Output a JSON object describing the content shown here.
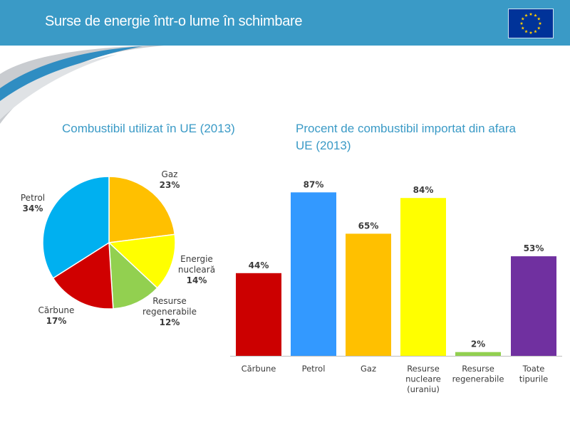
{
  "header": {
    "title": "Surse de energie într-o lume în schimbare",
    "flag_icon": "eu-flag-icon"
  },
  "chart_data": [
    {
      "type": "pie",
      "title": "Combustibil utilizat în UE (2013)",
      "slices": [
        {
          "name": "Gaz",
          "label_lines": [
            "Gaz"
          ],
          "value": 23,
          "display": "23%",
          "color": "#ffc000"
        },
        {
          "name": "Energie nucleară",
          "label_lines": [
            "Energie",
            "nucleară"
          ],
          "value": 14,
          "display": "14%",
          "color": "#ffff00"
        },
        {
          "name": "Resurse regenerabile",
          "label_lines": [
            "Resurse",
            "regenerabile"
          ],
          "value": 12,
          "display": "12%",
          "color": "#92d050"
        },
        {
          "name": "Cărbune",
          "label_lines": [
            "Cărbune"
          ],
          "value": 17,
          "display": "17%",
          "color": "#d00000"
        },
        {
          "name": "Petrol",
          "label_lines": [
            "Petrol"
          ],
          "value": 34,
          "display": "34%",
          "color": "#00b0f0"
        }
      ]
    },
    {
      "type": "bar",
      "title": "Procent de combustibil importat din afara UE (2013)",
      "title_lines": [
        "Procent de combustibil importat din afara",
        "UE (2013)"
      ],
      "categories": [
        "Cărbune",
        "Petrol",
        "Gaz",
        "Resurse nucleare (uraniu)",
        "Resurse regenerabile",
        "Toate tipurile"
      ],
      "category_lines": [
        [
          "Cărbune"
        ],
        [
          "Petrol"
        ],
        [
          "Gaz"
        ],
        [
          "Resurse",
          "nucleare",
          "(uraniu)"
        ],
        [
          "Resurse",
          "regenerabile"
        ],
        [
          "Toate",
          "tipurile"
        ]
      ],
      "values": [
        44,
        87,
        65,
        84,
        2,
        53
      ],
      "value_labels": [
        "44%",
        "87%",
        "65%",
        "84%",
        "2%",
        "53%"
      ],
      "colors": [
        "#cc0000",
        "#3399ff",
        "#ffc000",
        "#ffff00",
        "#92d050",
        "#7030a0"
      ],
      "xlabel": "",
      "ylabel": "",
      "ylim": [
        0,
        100
      ]
    }
  ]
}
